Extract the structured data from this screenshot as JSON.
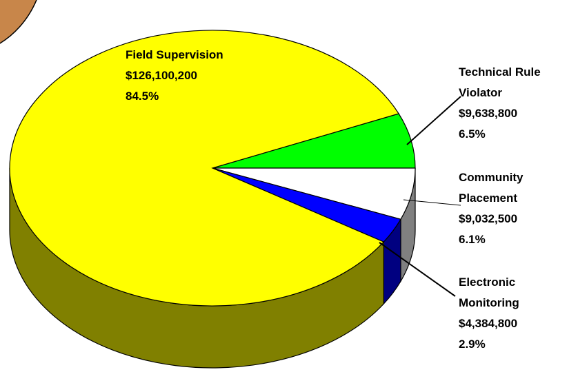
{
  "chart_data": {
    "type": "pie",
    "categories": [
      "Technical Rule Violator",
      "Community Placement",
      "Electronic Monitoring",
      "Field Supervision"
    ],
    "values": [
      9638800,
      9032500,
      4384800,
      126100200
    ],
    "value_labels": [
      "$9,638,800",
      "$9,032,500",
      "$4,384,800",
      "$126,100,200"
    ],
    "percents": [
      6.5,
      6.1,
      2.9,
      84.5
    ],
    "percent_labels": [
      "6.5%",
      "6.1%",
      "2.9%",
      "84.5%"
    ],
    "colors": [
      "#00ff00",
      "#ffffff",
      "#0000ff",
      "#ffff00"
    ],
    "side_colors": [
      "#008000",
      "#808080",
      "#000080",
      "#808000"
    ]
  }
}
